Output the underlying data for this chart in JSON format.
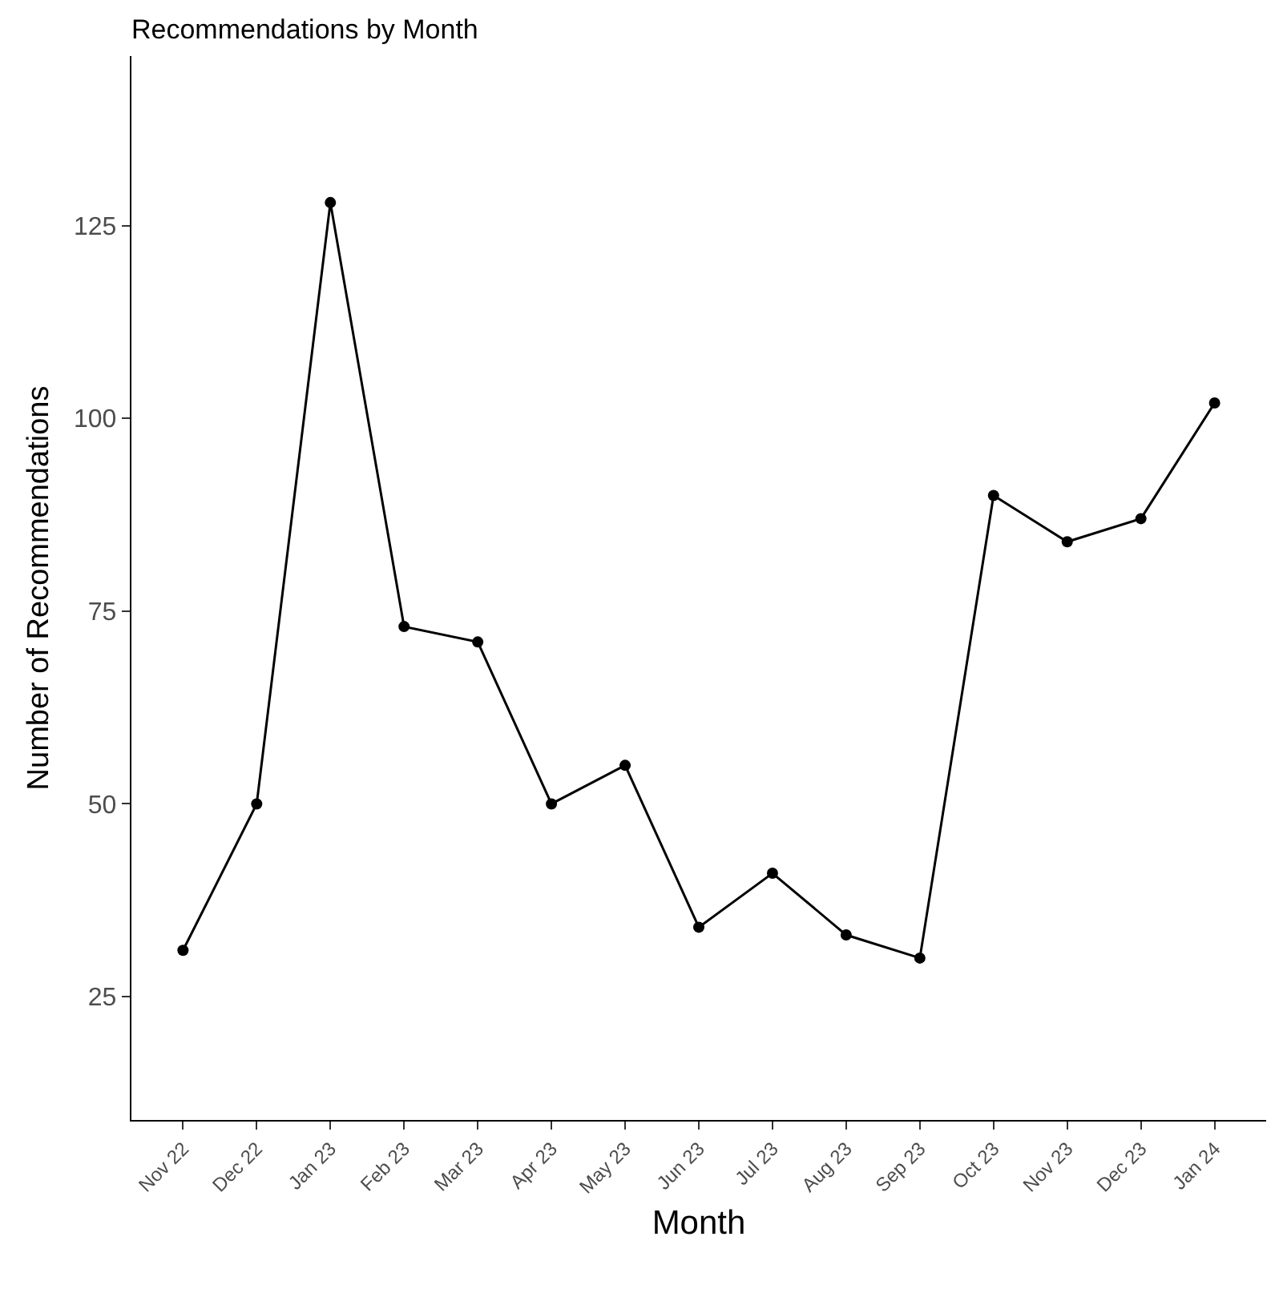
{
  "chart_data": {
    "type": "line",
    "title": "Recommendations by Month",
    "xlabel": "Month",
    "ylabel": "Number of Recommendations",
    "categories": [
      "Nov 22",
      "Dec 22",
      "Jan 23",
      "Feb 23",
      "Mar 23",
      "Apr 23",
      "May 23",
      "Jun 23",
      "Jul 23",
      "Aug 23",
      "Sep 23",
      "Oct 23",
      "Nov 23",
      "Dec 23",
      "Jan 24"
    ],
    "series": [
      {
        "color": "#000000",
        "values": [
          31,
          50,
          128,
          73,
          71,
          50,
          55,
          34,
          41,
          33,
          30,
          90,
          84,
          87,
          102
        ]
      }
    ],
    "ylim": [
      9,
      147
    ],
    "yticks": [
      25,
      50,
      75,
      100,
      125
    ],
    "grid": false,
    "marker": "circle",
    "line_style": "solid"
  }
}
